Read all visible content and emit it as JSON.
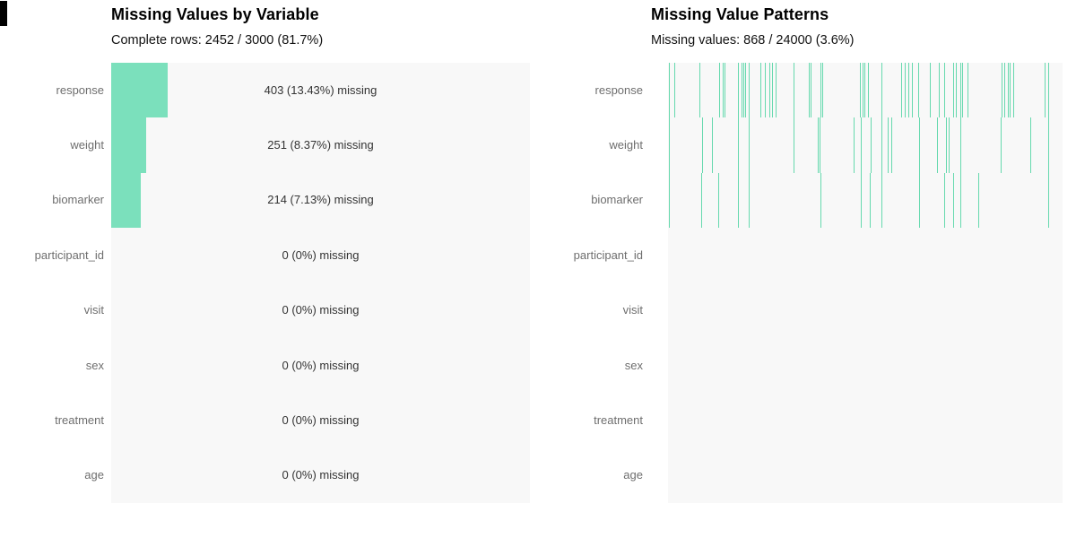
{
  "variables": [
    "response",
    "weight",
    "biomarker",
    "participant_id",
    "visit",
    "sex",
    "treatment",
    "age"
  ],
  "left_panel": {
    "title": "Missing Values by Variable",
    "subtitle": "Complete rows: 2452 / 3000 (81.7%)"
  },
  "right_panel": {
    "title": "Missing Value Patterns",
    "subtitle": "Missing values: 868 / 24000 (3.6%)"
  },
  "colors": {
    "bar_fill": "#7be0bc",
    "tick_line": "#66d9ae",
    "plot_background": "#f8f8f8",
    "variable_label": "#6e6e6e",
    "value_text": "#333333",
    "title_text": "#000000"
  },
  "chart_data": [
    {
      "type": "bar",
      "orientation": "horizontal",
      "title": "Missing Values by Variable",
      "subtitle": "Complete rows: 2452 / 3000 (81.7%)",
      "categories": [
        "response",
        "weight",
        "biomarker",
        "participant_id",
        "visit",
        "sex",
        "treatment",
        "age"
      ],
      "missing_counts": [
        403,
        251,
        214,
        0,
        0,
        0,
        0,
        0
      ],
      "missing_pct": [
        13.43,
        8.37,
        7.13,
        0,
        0,
        0,
        0,
        0
      ],
      "bar_labels": [
        "403 (13.43%) missing",
        "251 (8.37%) missing",
        "214 (7.13%) missing",
        "0 (0%) missing",
        "0 (0%) missing",
        "0 (0%) missing",
        "0 (0%) missing",
        "0 (0%) missing"
      ],
      "xlim": [
        0,
        100
      ],
      "grid": false,
      "legend": false
    },
    {
      "type": "heatmap",
      "title": "Missing Value Patterns",
      "subtitle": "Missing values: 868 / 24000 (3.6%)",
      "rows": [
        "response",
        "weight",
        "biomarker",
        "participant_id",
        "visit",
        "sex",
        "treatment",
        "age"
      ],
      "x_domain": [
        0,
        1
      ],
      "note": "vertical tick = missing cell at that record position",
      "ticks": [
        [
          0.003,
          0.016,
          0.08,
          0.13,
          0.139,
          0.143,
          0.177,
          0.186,
          0.191,
          0.195,
          0.205,
          0.234,
          0.245,
          0.257,
          0.264,
          0.273,
          0.318,
          0.357,
          0.361,
          0.386,
          0.391,
          0.486,
          0.493,
          0.498,
          0.507,
          0.541,
          0.591,
          0.6,
          0.609,
          0.618,
          0.634,
          0.664,
          0.686,
          0.7,
          0.723,
          0.73,
          0.741,
          0.745,
          0.759,
          0.845,
          0.852,
          0.861,
          0.866,
          0.875,
          0.955,
          0.964
        ],
        [
          0.003,
          0.086,
          0.111,
          0.177,
          0.205,
          0.318,
          0.379,
          0.384,
          0.47,
          0.489,
          0.514,
          0.541,
          0.557,
          0.566,
          0.636,
          0.682,
          0.705,
          0.711,
          0.741,
          0.843,
          0.918,
          0.964
        ],
        [
          0.003,
          0.084,
          0.127,
          0.177,
          0.205,
          0.386,
          0.489,
          0.511,
          0.541,
          0.636,
          0.7,
          0.723,
          0.741,
          0.786,
          0.964
        ],
        [],
        [],
        [],
        [],
        []
      ]
    }
  ]
}
